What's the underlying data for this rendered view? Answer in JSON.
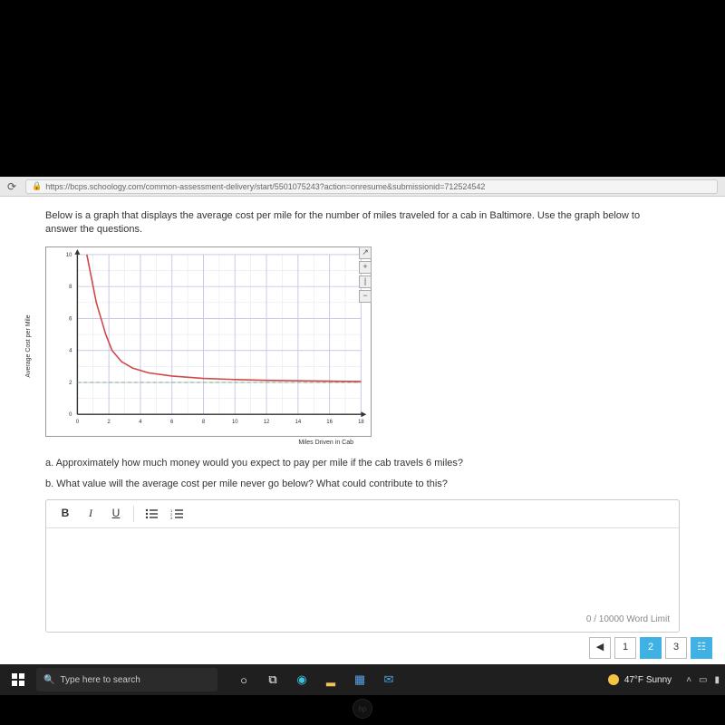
{
  "browser": {
    "url": "https://bcps.schoology.com/common-assessment-delivery/start/5501075243?action=onresume&submissionid=712524542"
  },
  "prompt": "Below is a graph that displays the average cost per mile for the number of miles traveled for a cab in Baltimore. Use the graph below to answer the questions.",
  "chart": {
    "type": "line",
    "xlabel": "Miles Driven in Cab",
    "ylabel": "Average Cost per Mile",
    "xlim": [
      0,
      18
    ],
    "ylim": [
      0,
      10
    ],
    "xtick_step": 2,
    "ytick_step": 2,
    "minor_step": 1,
    "bg": "#ffffff",
    "major_grid": "#c9c9e6",
    "minor_grid": "#e2e2f0",
    "axis_color": "#333333",
    "curve_color": "#d04848",
    "asymptote_color": "#7aa77a",
    "asymptote_y": 2,
    "points": [
      [
        0.6,
        10
      ],
      [
        0.8,
        9
      ],
      [
        1.0,
        8
      ],
      [
        1.2,
        7
      ],
      [
        1.5,
        6
      ],
      [
        1.8,
        5
      ],
      [
        2.2,
        4
      ],
      [
        2.8,
        3.3
      ],
      [
        3.5,
        2.9
      ],
      [
        4.5,
        2.6
      ],
      [
        6,
        2.4
      ],
      [
        8,
        2.25
      ],
      [
        10,
        2.18
      ],
      [
        12,
        2.13
      ],
      [
        14,
        2.1
      ],
      [
        16,
        2.08
      ],
      [
        18,
        2.06
      ]
    ]
  },
  "questions": {
    "a": "a. Approximately how much money would you expect to pay per mile if the cab travels 6 miles?",
    "b": "b. What value will the average cost per mile never go below? What could contribute to this?"
  },
  "editor": {
    "bold": "B",
    "italic": "I",
    "under": "U",
    "ul_icon": "≡",
    "ol_icon": "≡",
    "wordlimit": "0 / 10000 Word Limit"
  },
  "pager": {
    "prev": "◀",
    "p1": "1",
    "p2": "2",
    "p3": "3",
    "grid": "☷"
  },
  "taskbar": {
    "search_placeholder": "Type here to search",
    "weather": "47°F Sunny",
    "chevron": "˄"
  }
}
